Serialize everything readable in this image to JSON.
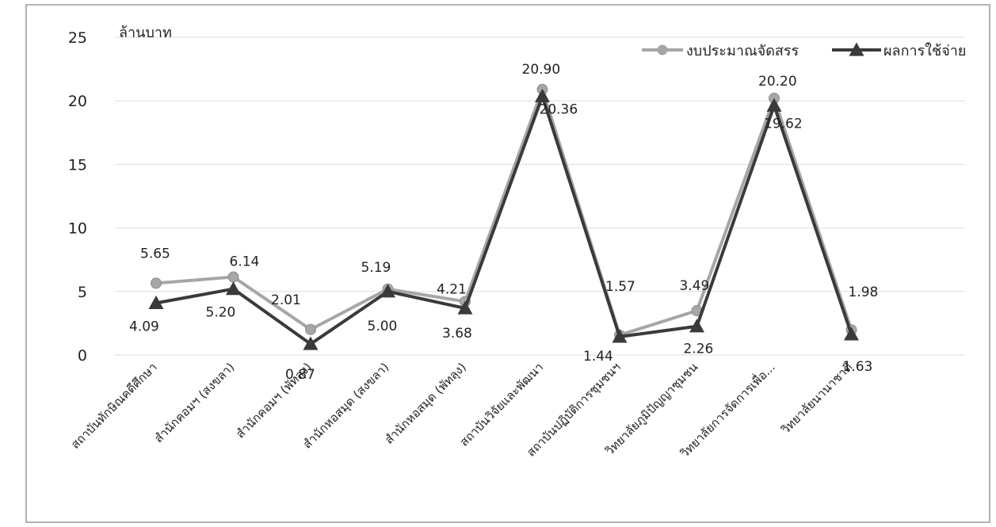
{
  "chart_data": {
    "type": "line",
    "ylabel": "ล้านบาท",
    "ylim": [
      0,
      25
    ],
    "yticks": [
      "0",
      "5",
      "10",
      "15",
      "20",
      "25"
    ],
    "grid": true,
    "legend_position": "top-right",
    "categories": [
      "สถาบันทักษิณคดีศึกษา",
      "สำนักคอมฯ (สงขลา)",
      "สำนักคอมฯ (พัทลุง)",
      "สำนักหอสมุด (สงขลา)",
      "สำนักหอสมุด (พัทลุง)",
      "สถาบันวิจัยและพัฒนา",
      "สถาบันปฏิบัติการชุมชนฯ",
      "วิทยาลัยภูมิปัญญาชุมชน",
      "วิทยาลัยการจัดการเพื่อ...",
      "วิทยาลัยนานาชาติ"
    ],
    "series": [
      {
        "name": "งบประมาณจัดสรร",
        "color": "#a6a6a6",
        "marker": "circle",
        "values": [
          5.65,
          6.14,
          2.01,
          5.19,
          4.21,
          20.9,
          1.57,
          3.49,
          20.2,
          1.98
        ],
        "labels": [
          "5.65",
          "6.14",
          "2.01",
          "5.19",
          "4.21",
          "20.90",
          "1.57",
          "3.49",
          "20.20",
          "1.98"
        ]
      },
      {
        "name": "ผลการใช้จ่าย",
        "color": "#3a3a3a",
        "marker": "triangle",
        "values": [
          4.09,
          5.2,
          0.87,
          5.0,
          3.68,
          20.36,
          1.44,
          2.26,
          19.62,
          1.63
        ],
        "labels": [
          "4.09",
          "5.20",
          "0.87",
          "5.00",
          "3.68",
          "20.36",
          "1.44",
          "2.26",
          "19.62",
          "1.63"
        ]
      }
    ]
  }
}
